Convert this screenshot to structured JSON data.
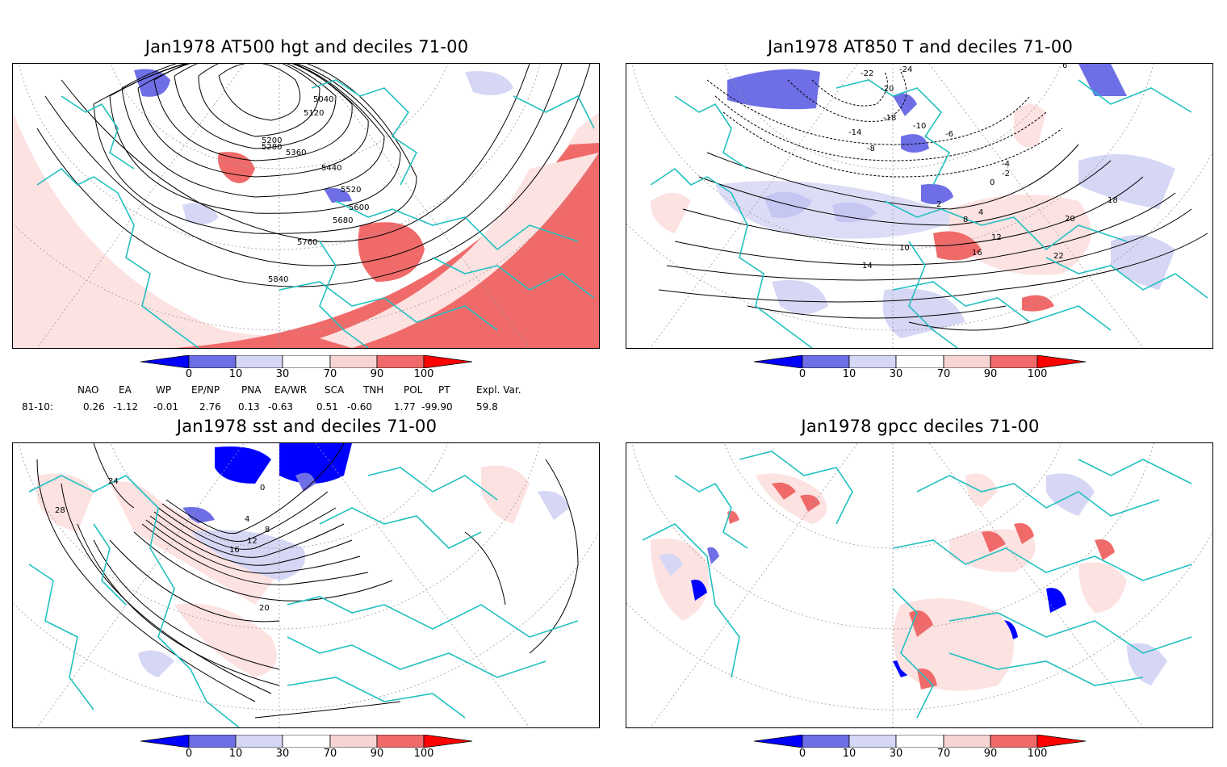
{
  "panels": [
    {
      "title": "Jan1978 AT500 hgt and deciles 71-00",
      "contour_labels": [
        "5040",
        "5120",
        "5200",
        "5280",
        "5360",
        "5440",
        "5520",
        "5600",
        "5680",
        "5760",
        "5840"
      ]
    },
    {
      "title": "Jan1978 AT850 T and deciles 71-00",
      "contour_labels": [
        "-24",
        "-22",
        "-20",
        "-18",
        "-14",
        "-10",
        "-8",
        "-6",
        "-4",
        "-2",
        "0",
        "2",
        "4",
        "6",
        "8",
        "10",
        "12",
        "14",
        "16",
        "18",
        "20",
        "22"
      ]
    },
    {
      "title": "Jan1978 sst and deciles 71-00",
      "contour_labels": [
        "0",
        "4",
        "8",
        "12",
        "16",
        "20",
        "24",
        "28"
      ]
    },
    {
      "title": "Jan1978 gpcc deciles 71-00",
      "contour_labels": []
    }
  ],
  "colorbar": {
    "ticks": [
      "0",
      "10",
      "30",
      "70",
      "90",
      "100"
    ],
    "colors": [
      "#0000ff",
      "#6e6ee6",
      "#d6d6f5",
      "#ffffff",
      "#f7d4d4",
      "#f06a6a",
      "#ff0000"
    ]
  },
  "indices": {
    "row_label": "81-10:",
    "headers": [
      "NAO",
      "EA",
      "WP",
      "EP/NP",
      "PNA",
      "EA/WR",
      "SCA",
      "TNH",
      "POL",
      "PT",
      "Expl. Var."
    ],
    "values": [
      "0.26",
      "-1.12",
      "-0.01",
      "2.76",
      "0.13",
      "-0.63",
      "0.51",
      "-0.60",
      "1.77",
      "-99.90",
      "59.8"
    ]
  },
  "colors": {
    "coast": "#22c0c0",
    "contour": "#000000",
    "grid": "#9a9a9a"
  }
}
